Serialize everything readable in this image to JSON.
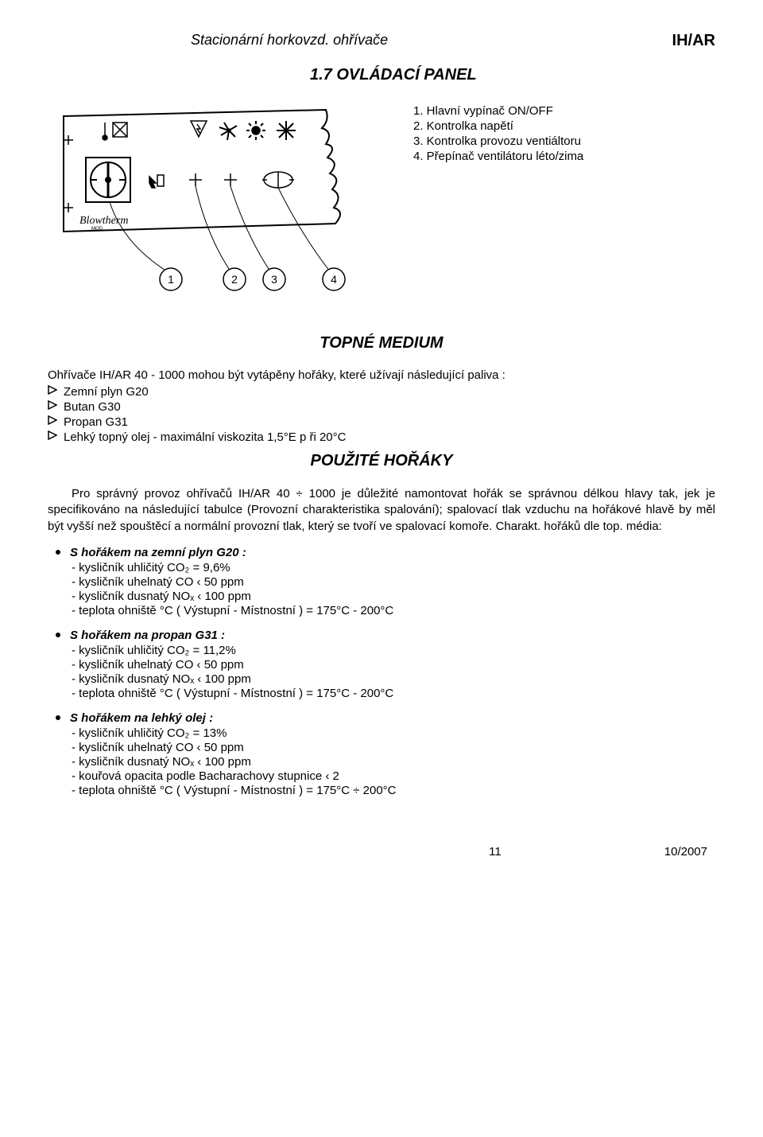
{
  "header": {
    "left": "Stacionární horkovzd. ohřívače",
    "right": "IH/AR"
  },
  "panel": {
    "title": "1.7 OVLÁDACÍ PANEL",
    "items": [
      "1.  Hlavní vypínač ON/OFF",
      "2.  Kontrolka napětí",
      "3.  Kontrolka provozu ventiáltoru",
      "4.  Přepínač ventilátoru léto/zima"
    ],
    "diagram": {
      "circle_labels": [
        "1",
        "2",
        "3",
        "4"
      ],
      "brand": "Blowtherm"
    }
  },
  "medium": {
    "title": "TOPNÉ MEDIUM",
    "intro": "Ohřívače IH/AR  40 - 1000 mohou být vytápěny hořáky, které užívají následující paliva :",
    "bullets": [
      "Zemní plyn G20",
      "Butan G30",
      "Propan G31",
      "Lehký topný olej - maximální viskozita 1,5°E p ři 20°C"
    ]
  },
  "burners": {
    "title": "POUŽITÉ HOŘÁKY",
    "paragraph": "Pro správný provoz ohřívačů IH/AR 40 ÷ 1000 je důležité namontovat hořák se správnou délkou hlavy tak, jek je specifikováno na následující tabulce (Provozní charakteristika spalování); spalovací tlak vzduchu na hořákové hlavě by měl být vyšší než spouštěcí a normální provozní tlak, který se tvoří ve spalovací komoře. Charakt. hořáků dle top. média:",
    "groups": [
      {
        "title": "S hořákem na zemní plyn G20 :",
        "lines": [
          "kysličník uhličitý    CO₂  =  9,6%",
          "kysličník uhelnatý  CO  ‹  50 ppm",
          "kysličník dusnatý   NOₓ ‹  100 ppm",
          "teplota ohniště °C  ( Výstupní - Místnostní ) = 175°C  - 200°C"
        ]
      },
      {
        "title": "S hořákem na propan G31 :",
        "lines": [
          "kysličník uhličitý   CO₂  =  11,2%",
          "kysličník uhelnatý  CO  ‹  50 ppm",
          "kysličník dusnatý   NOₓ ‹  100 ppm",
          "teplota ohniště °C  ( Výstupní - Místnostní ) = 175°C - 200°C"
        ]
      },
      {
        "title": "S hořákem na lehký olej :",
        "lines": [
          "kysličník uhličitý   CO₂  =  13%",
          "kysličník uhelnatý  CO  ‹  50 ppm",
          "kysličník dusnatý   NOₓ ‹  100 ppm",
          "kouřová opacita podle Bacharachovy stupnice ‹ 2",
          "teplota ohniště °C  ( Výstupní - Místnostní ) = 175°C ÷ 200°C"
        ]
      }
    ]
  },
  "footer": {
    "page": "11",
    "date": "10/2007"
  },
  "colors": {
    "text": "#000000",
    "background": "#ffffff",
    "line": "#000000"
  }
}
